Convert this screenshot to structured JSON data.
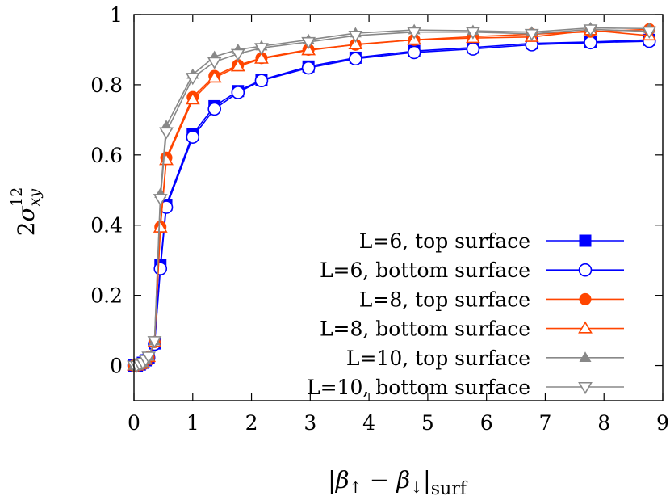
{
  "chart_data": {
    "type": "line",
    "xlabel": "|β↑ − β↓|surf",
    "xlabel_parts": {
      "bar_left": "|",
      "beta1": "β",
      "arrow1": "↑",
      "minus": " − ",
      "beta2": "β",
      "arrow2": "↓",
      "bar_right": "|",
      "sub": "surf"
    },
    "ylabel": "2σxy12",
    "ylabel_parts": {
      "prefix": "2",
      "sigma": "σ",
      "sub": "xy",
      "sup": "12"
    },
    "xlim": [
      0,
      9
    ],
    "ylim": [
      -0.1,
      1
    ],
    "xticks": [
      0,
      1,
      2,
      3,
      4,
      5,
      6,
      7,
      8,
      9
    ],
    "yticks": [
      0,
      0.2,
      0.4,
      0.6,
      0.8,
      1
    ],
    "ytick_labels": [
      "0",
      "0.2",
      "0.4",
      "0.6",
      "0.8",
      "1"
    ],
    "grid": false,
    "legend_position": "bottom-right",
    "x": [
      0,
      0.05,
      0.1,
      0.15,
      0.2,
      0.25,
      0.35,
      0.45,
      0.55,
      1.0,
      1.37,
      1.77,
      2.17,
      2.97,
      3.77,
      4.77,
      5.77,
      6.77,
      7.77,
      8.77
    ],
    "series": [
      {
        "name": "L=6, top surface",
        "color": "#0000ff",
        "marker": "square-filled",
        "values": [
          0,
          0,
          0.003,
          0.008,
          0.015,
          0.022,
          0.063,
          0.287,
          0.458,
          0.659,
          0.739,
          0.782,
          0.814,
          0.852,
          0.877,
          0.896,
          0.906,
          0.918,
          0.922,
          0.928
        ]
      },
      {
        "name": "L=6, bottom surface",
        "color": "#0000ff",
        "marker": "circle-open",
        "values": [
          0,
          0,
          0.003,
          0.008,
          0.015,
          0.022,
          0.061,
          0.276,
          0.451,
          0.651,
          0.731,
          0.778,
          0.812,
          0.848,
          0.874,
          0.892,
          0.902,
          0.914,
          0.92,
          0.924
        ]
      },
      {
        "name": "L=8, top surface",
        "color": "#ff4500",
        "marker": "circle-filled",
        "values": [
          0,
          0,
          0.003,
          0.008,
          0.016,
          0.024,
          0.067,
          0.395,
          0.592,
          0.765,
          0.825,
          0.856,
          0.876,
          0.9,
          0.914,
          0.928,
          0.937,
          0.944,
          0.951,
          0.958
        ]
      },
      {
        "name": "L=8, bottom surface",
        "color": "#ff4500",
        "marker": "triangle-up-open",
        "values": [
          0,
          0,
          0.003,
          0.008,
          0.016,
          0.024,
          0.067,
          0.393,
          0.585,
          0.758,
          0.82,
          0.852,
          0.874,
          0.898,
          0.915,
          0.928,
          0.933,
          0.936,
          0.955,
          0.94
        ]
      },
      {
        "name": "L=10, top surface",
        "color": "#888888",
        "marker": "triangle-up-filled",
        "values": [
          0,
          0,
          0.003,
          0.008,
          0.017,
          0.026,
          0.07,
          0.49,
          0.683,
          0.829,
          0.88,
          0.9,
          0.91,
          0.928,
          0.947,
          0.956,
          0.954,
          0.95,
          0.962,
          0.96
        ]
      },
      {
        "name": "L=10, bottom surface",
        "color": "#888888",
        "marker": "triangle-down-open",
        "values": [
          0,
          0,
          0.003,
          0.008,
          0.017,
          0.026,
          0.07,
          0.475,
          0.665,
          0.82,
          0.865,
          0.888,
          0.905,
          0.922,
          0.94,
          0.95,
          0.95,
          0.945,
          0.958,
          0.952
        ]
      }
    ]
  }
}
